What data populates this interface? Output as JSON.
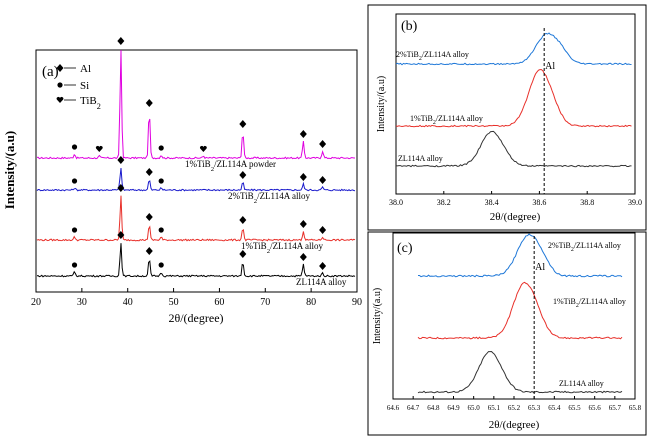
{
  "chart_data": [
    {
      "panel": "(a)",
      "type": "line",
      "xlabel": "2θ/(degree)",
      "ylabel": "Intensity/(a.u)",
      "xlim": [
        20,
        90
      ],
      "xticks": [
        20,
        30,
        40,
        50,
        60,
        70,
        80,
        90
      ],
      "legend": [
        {
          "symbol": "diamond",
          "label": "Al"
        },
        {
          "symbol": "circle",
          "label": "Si"
        },
        {
          "symbol": "heart",
          "label": "TiB2"
        }
      ],
      "series": [
        {
          "name": "1%TiB2/ZL114A powder",
          "color": "#e000e0",
          "peaks": [
            [
              28.4,
              0.4
            ],
            [
              33.8,
              0.2
            ],
            [
              38.5,
              11.0
            ],
            [
              44.7,
              4.8
            ],
            [
              47.3,
              0.3
            ],
            [
              56.5,
              0.2
            ],
            [
              65.1,
              2.7
            ],
            [
              78.3,
              1.7
            ],
            [
              82.5,
              0.7
            ]
          ]
        },
        {
          "name": "2%TiB2/ZL114A alloy",
          "color": "#1a1acc",
          "peaks": [
            [
              28.4,
              0.2
            ],
            [
              38.5,
              2.3
            ],
            [
              44.7,
              1.1
            ],
            [
              47.3,
              0.2
            ],
            [
              65.1,
              0.8
            ],
            [
              78.3,
              0.6
            ],
            [
              82.5,
              0.3
            ]
          ]
        },
        {
          "name": "1%TiB2/ZL114A alloy",
          "color": "#e8302a",
          "peaks": [
            [
              28.4,
              0.3
            ],
            [
              38.5,
              4.5
            ],
            [
              44.7,
              1.6
            ],
            [
              47.3,
              0.3
            ],
            [
              65.1,
              1.3
            ],
            [
              78.3,
              0.9
            ],
            [
              82.5,
              0.3
            ]
          ]
        },
        {
          "name": "ZL114A alloy",
          "color": "#000000",
          "peaks": [
            [
              28.4,
              0.4
            ],
            [
              38.5,
              3.4
            ],
            [
              44.7,
              1.8
            ],
            [
              47.3,
              0.4
            ],
            [
              65.1,
              1.5
            ],
            [
              78.3,
              1.2
            ],
            [
              82.5,
              0.3
            ]
          ]
        }
      ]
    },
    {
      "panel": "(b)",
      "type": "line",
      "xlabel": "2θ/(degree)",
      "ylabel": "Intensity/(a.u)",
      "xlim": [
        38.0,
        39.0
      ],
      "xticks": [
        "38.0",
        "38.2",
        "38.4",
        "38.6",
        "38.8",
        "39.0"
      ],
      "reference_line": {
        "x": 38.62,
        "label": "Al"
      },
      "series": [
        {
          "name": "2%TiB2/ZL114A alloy",
          "color": "#1f78d8",
          "peak_x": 38.63
        },
        {
          "name": "1%TiB2/ZL114A alloy",
          "color": "#e8302a",
          "peak_x": 38.6
        },
        {
          "name": "ZL114A alloy",
          "color": "#333333",
          "peak_x": 38.4
        }
      ]
    },
    {
      "panel": "(c)",
      "type": "line",
      "xlabel": "2θ/(degree)",
      "ylabel": "Intensity/(a.u)",
      "xlim": [
        64.6,
        65.8
      ],
      "xticks": [
        "64.6",
        "64.7",
        "64.8",
        "64.9",
        "65.0",
        "65.1",
        "65.2",
        "65.3",
        "65.4",
        "65.5",
        "65.6",
        "65.7",
        "65.8"
      ],
      "reference_line": {
        "x": 65.3,
        "label": "Al"
      },
      "series": [
        {
          "name": "2%TiB2/ZL114A alloy",
          "color": "#1f78d8",
          "peak_x": 65.27
        },
        {
          "name": "1%TiB2/ZL114A alloy",
          "color": "#e8302a",
          "peak_x": 65.25
        },
        {
          "name": "ZL114A alloy",
          "color": "#333333",
          "peak_x": 65.08
        }
      ]
    }
  ]
}
